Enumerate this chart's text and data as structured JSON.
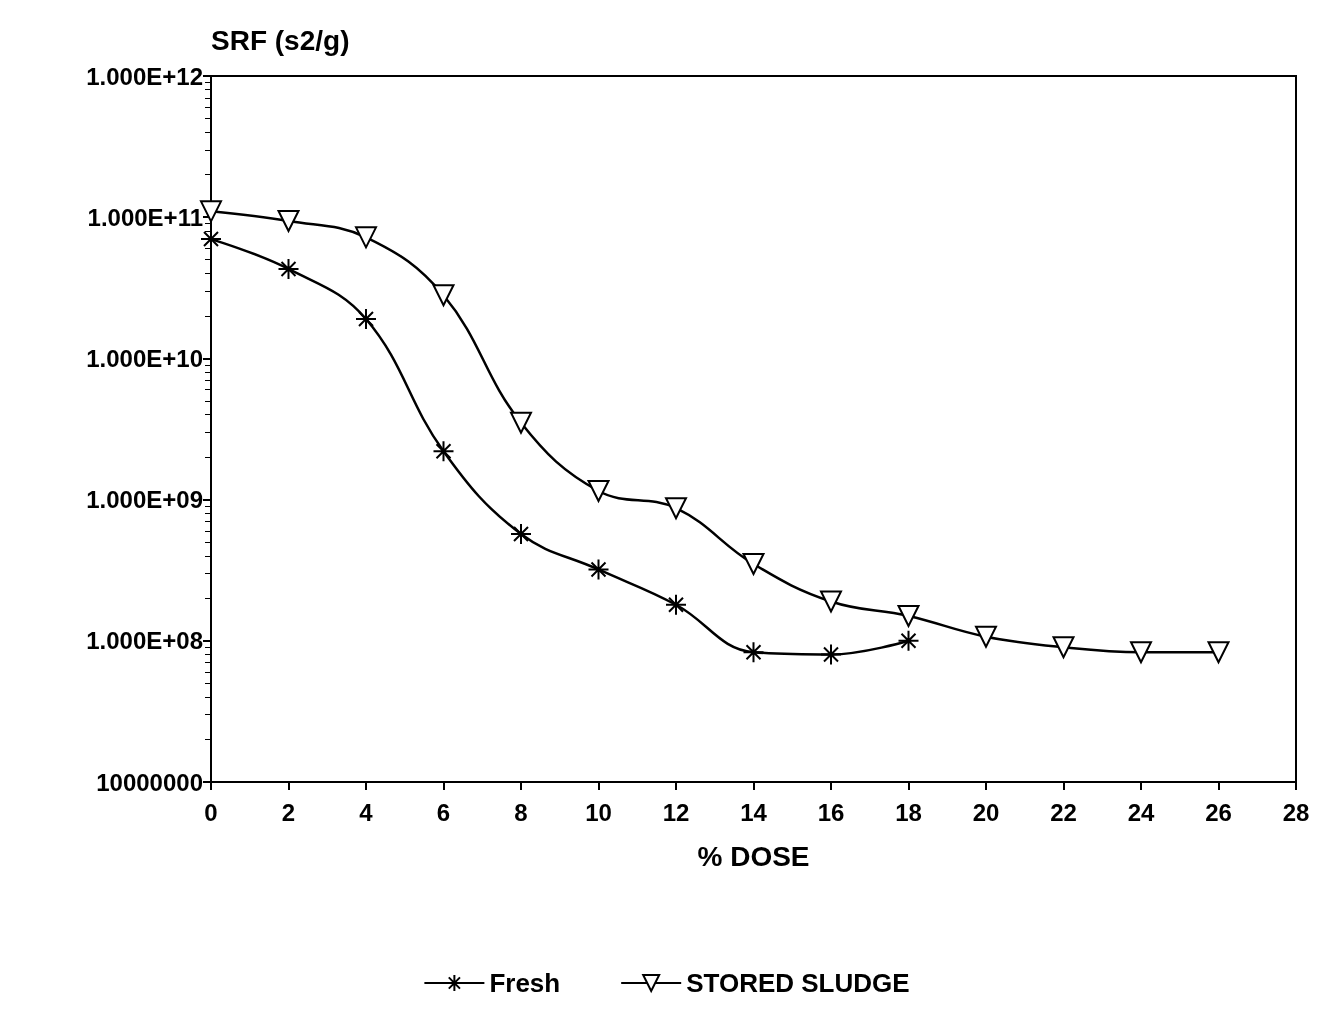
{
  "chart_data": {
    "type": "line",
    "ylabel": "SRF (s2/g)",
    "xlabel": "% DOSE",
    "x": [
      0,
      2,
      4,
      6,
      8,
      10,
      12,
      14,
      16,
      18,
      20,
      22,
      24,
      26
    ],
    "series": [
      {
        "name": "Fresh",
        "color": "#000000",
        "marker": "cross",
        "values": [
          70000000000.0,
          43000000000.0,
          19000000000.0,
          2200000000.0,
          570000000.0,
          320000000.0,
          180000000.0,
          83000000.0,
          80000000.0,
          100000000.0,
          null,
          null,
          null,
          null
        ]
      },
      {
        "name": "STORED SLUDGE",
        "color": "#000000",
        "marker": "triangle",
        "values": [
          110000000000.0,
          94000000000.0,
          72000000000.0,
          28000000000.0,
          3500000000.0,
          1150000000.0,
          870000000.0,
          350000000.0,
          190000000.0,
          150000000.0,
          107000000.0,
          90000000.0,
          83000000.0,
          83000000.0
        ]
      }
    ],
    "log": "y",
    "xlim": [
      0,
      28
    ],
    "xticks": [
      0,
      2,
      4,
      6,
      8,
      10,
      12,
      14,
      16,
      18,
      20,
      22,
      24,
      26,
      28
    ],
    "ylim": [
      10000000,
      1000000000000
    ],
    "yticks": [
      10000000,
      {
        "value": 100000000,
        "label": "1.000E+08"
      },
      {
        "value": 1000000000,
        "label": "1.000E+09"
      },
      {
        "value": 10000000000,
        "label": "1.000E+10"
      },
      {
        "value": 100000000000,
        "label": "1.000E+11"
      },
      {
        "value": 1000000000000,
        "label": "1.000E+12"
      }
    ],
    "grid": false,
    "legend": "bottom",
    "line_style": "solid"
  }
}
